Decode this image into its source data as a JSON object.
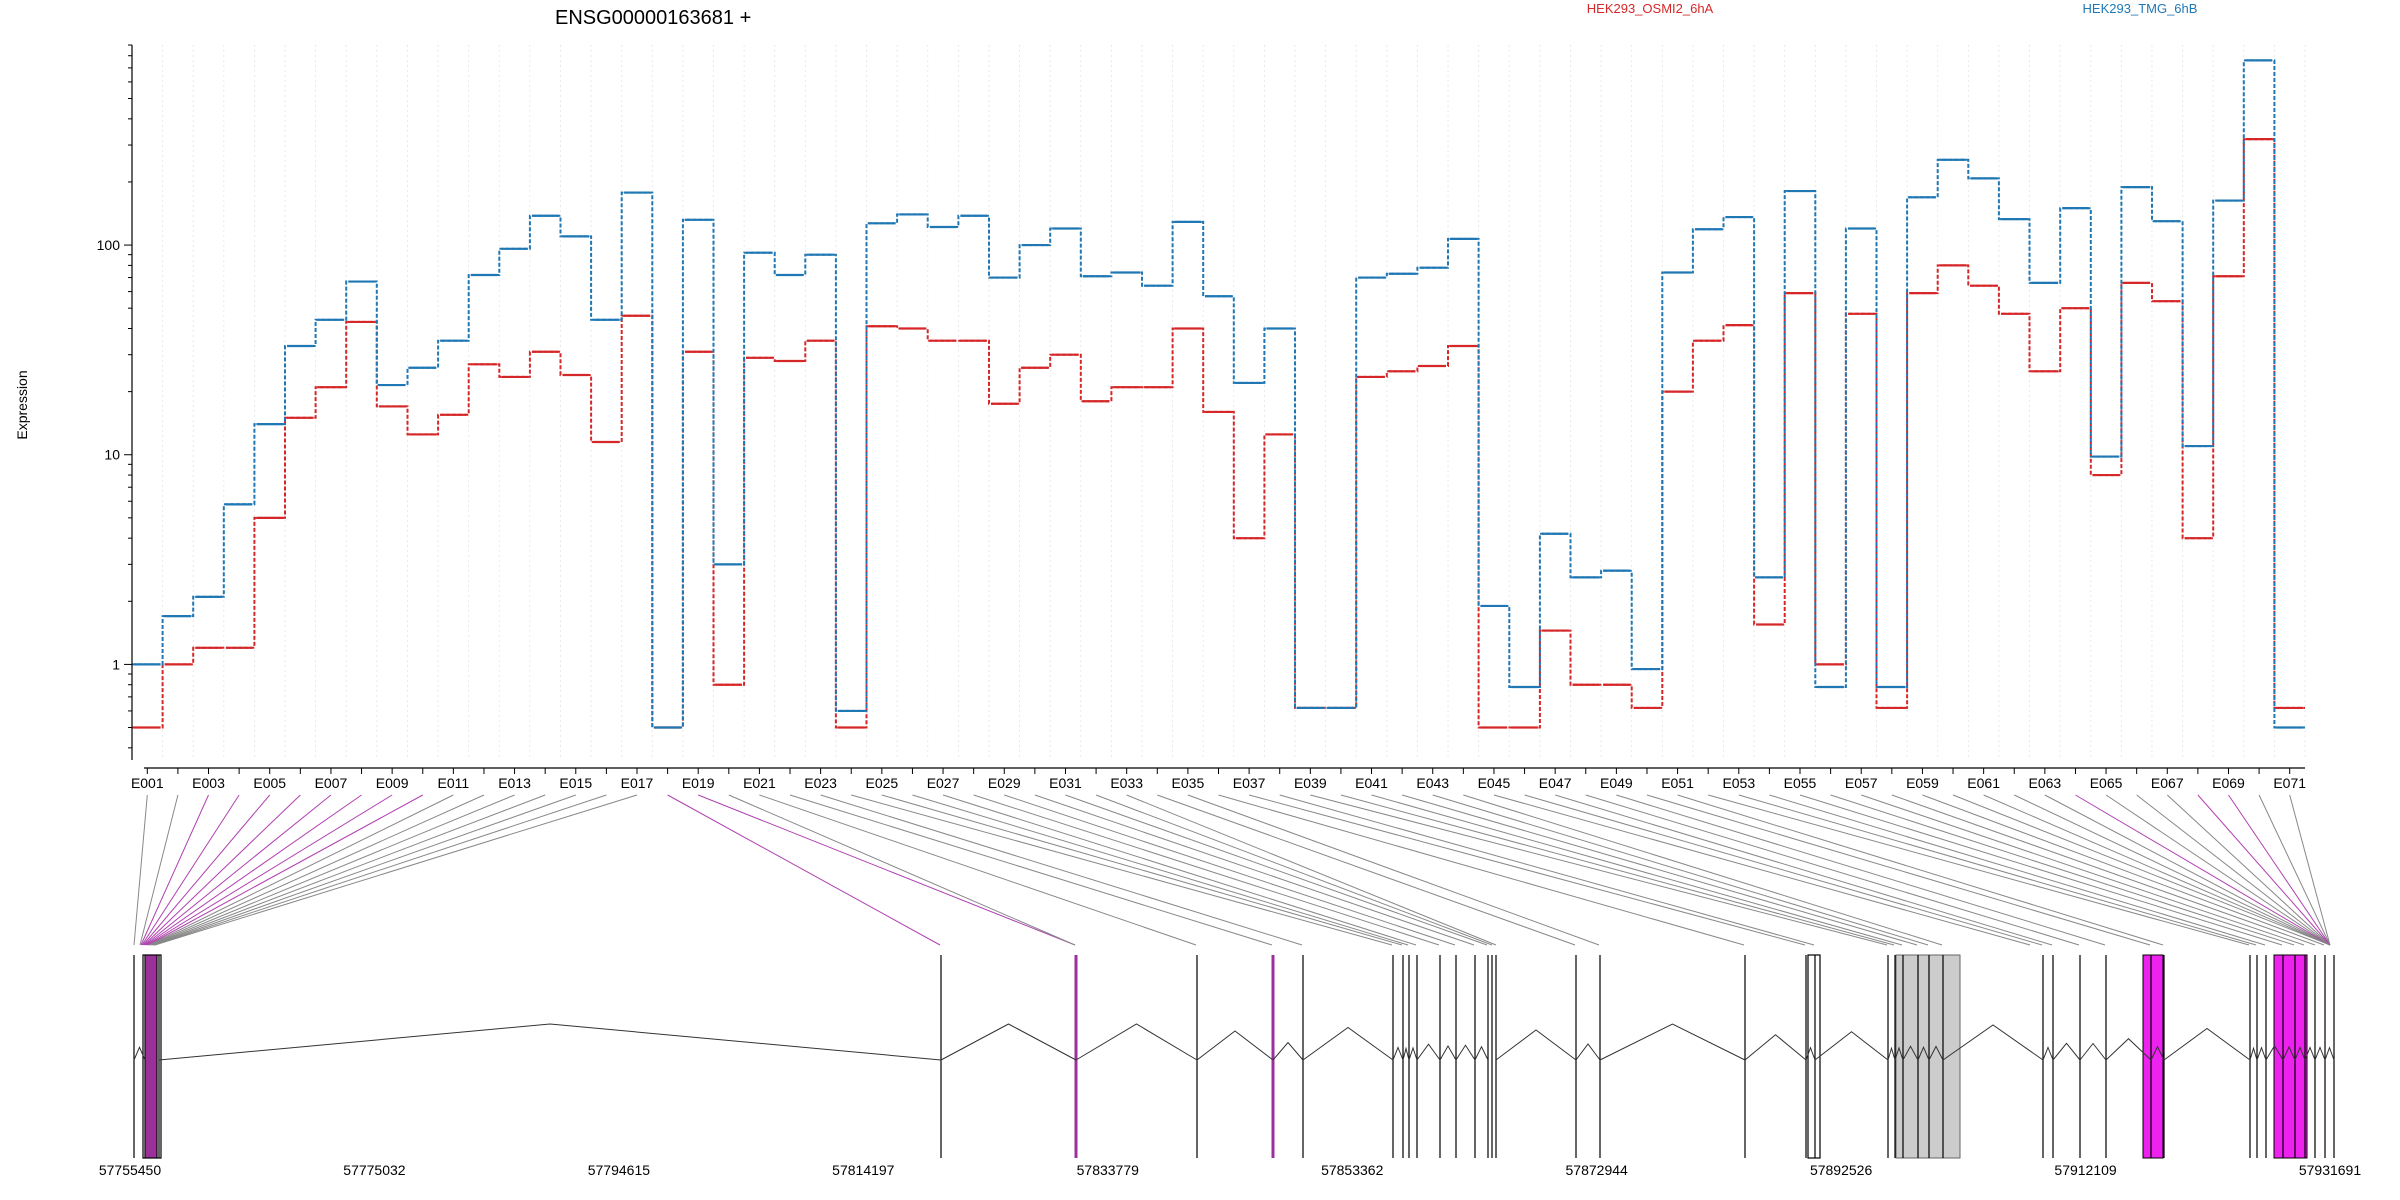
{
  "title": "ENSG00000163681 +",
  "ylabel": "Expression",
  "colors": {
    "series_a": "#d62728",
    "series_b": "#1f77b4",
    "transcript_line": "#333333",
    "connector": "#888888",
    "highlight": "#ee22ee",
    "shaded": "#cccccc"
  },
  "chart_data": {
    "type": "line",
    "step_style": "dashed-step",
    "y_scale": "log",
    "yticks": [
      1,
      10,
      100
    ],
    "ytick_labels": [
      "1",
      "10",
      "100"
    ],
    "ylim": [
      0.35,
      900
    ],
    "grid": "vertical-minor",
    "legend": "top-right",
    "x": [
      "E001",
      "E002",
      "E003",
      "E004",
      "E005",
      "E006",
      "E007",
      "E008",
      "E009",
      "E010",
      "E011",
      "E012",
      "E013",
      "E014",
      "E015",
      "E016",
      "E017",
      "E018",
      "E019",
      "E020",
      "E021",
      "E022",
      "E023",
      "E024",
      "E025",
      "E026",
      "E027",
      "E028",
      "E029",
      "E030",
      "E031",
      "E032",
      "E033",
      "E034",
      "E035",
      "E036",
      "E037",
      "E038",
      "E039",
      "E040",
      "E041",
      "E042",
      "E043",
      "E044",
      "E045",
      "E046",
      "E047",
      "E048",
      "E049",
      "E050",
      "E051",
      "E052",
      "E053",
      "E054",
      "E055",
      "E056",
      "E057",
      "E058",
      "E059",
      "E060",
      "E061",
      "E062",
      "E063",
      "E064",
      "E065",
      "E066",
      "E067",
      "E068",
      "E069",
      "E070",
      "E071"
    ],
    "xtick_labels": [
      "E001",
      "",
      "E003",
      "",
      "E005",
      "",
      "E007",
      "",
      "E009",
      "",
      "E011",
      "",
      "E013",
      "",
      "E015",
      "",
      "E017",
      "",
      "E019",
      "",
      "E021",
      "",
      "E023",
      "",
      "E025",
      "",
      "E027",
      "",
      "E029",
      "",
      "E031",
      "",
      "E033",
      "",
      "E035",
      "",
      "E037",
      "",
      "E039",
      "",
      "E041",
      "",
      "E043",
      "",
      "E045",
      "",
      "E047",
      "",
      "E049",
      "",
      "E051",
      "",
      "E053",
      "",
      "E055",
      "",
      "E057",
      "",
      "E059",
      "",
      "E061",
      "",
      "E063",
      "",
      "E065",
      "",
      "E067",
      "",
      "E069",
      "",
      "E071"
    ],
    "series": [
      {
        "name": "HEK293_OSMI2_6hA",
        "values": [
          0.5,
          1.0,
          1.2,
          1.2,
          5.0,
          15,
          21,
          43,
          17,
          12.5,
          15.5,
          27,
          23.5,
          31,
          24,
          11.5,
          46,
          0.5,
          31,
          0.8,
          29,
          28,
          35,
          0.5,
          41,
          40,
          35,
          35,
          17.5,
          26,
          30,
          18,
          21,
          21,
          40,
          16,
          4,
          12.5,
          0.62,
          0.62,
          23.5,
          25,
          26.5,
          33,
          0.5,
          0.5,
          1.45,
          0.8,
          0.8,
          0.62,
          20,
          35,
          41.5,
          1.55,
          59,
          1.0,
          47,
          0.62,
          59,
          80,
          64,
          47,
          25,
          50,
          8,
          66,
          54,
          4,
          71,
          320,
          0.62
        ]
      },
      {
        "name": "HEK293_TMG_6hB",
        "values": [
          1.0,
          1.7,
          2.1,
          5.8,
          14,
          33,
          44,
          67,
          21.5,
          26,
          35,
          72,
          96,
          138,
          110,
          44,
          178,
          0.5,
          132,
          3.0,
          92,
          72,
          90,
          0.6,
          127,
          140,
          122,
          138,
          70,
          100,
          120,
          71,
          74,
          64,
          129,
          57,
          22,
          40,
          0.62,
          0.62,
          70,
          73,
          78,
          107,
          1.9,
          0.78,
          4.2,
          2.6,
          2.8,
          0.95,
          74,
          119,
          136,
          2.6,
          181,
          0.78,
          120,
          0.78,
          169,
          255,
          208,
          133,
          66,
          150,
          9.8,
          189,
          130,
          11,
          163,
          760,
          0.5
        ]
      }
    ]
  },
  "genome_axis": {
    "labels": [
      "57755450",
      "57775032",
      "57794615",
      "57814197",
      "57833779",
      "57853362",
      "57872944",
      "57892526",
      "57912109",
      "57931691"
    ]
  },
  "exon_track": {
    "highlight_exons": [
      "E002",
      "E003",
      "E004",
      "E005",
      "E006",
      "E018",
      "E065",
      "E069",
      "E070"
    ],
    "shaded_exons": [
      "E058"
    ]
  }
}
